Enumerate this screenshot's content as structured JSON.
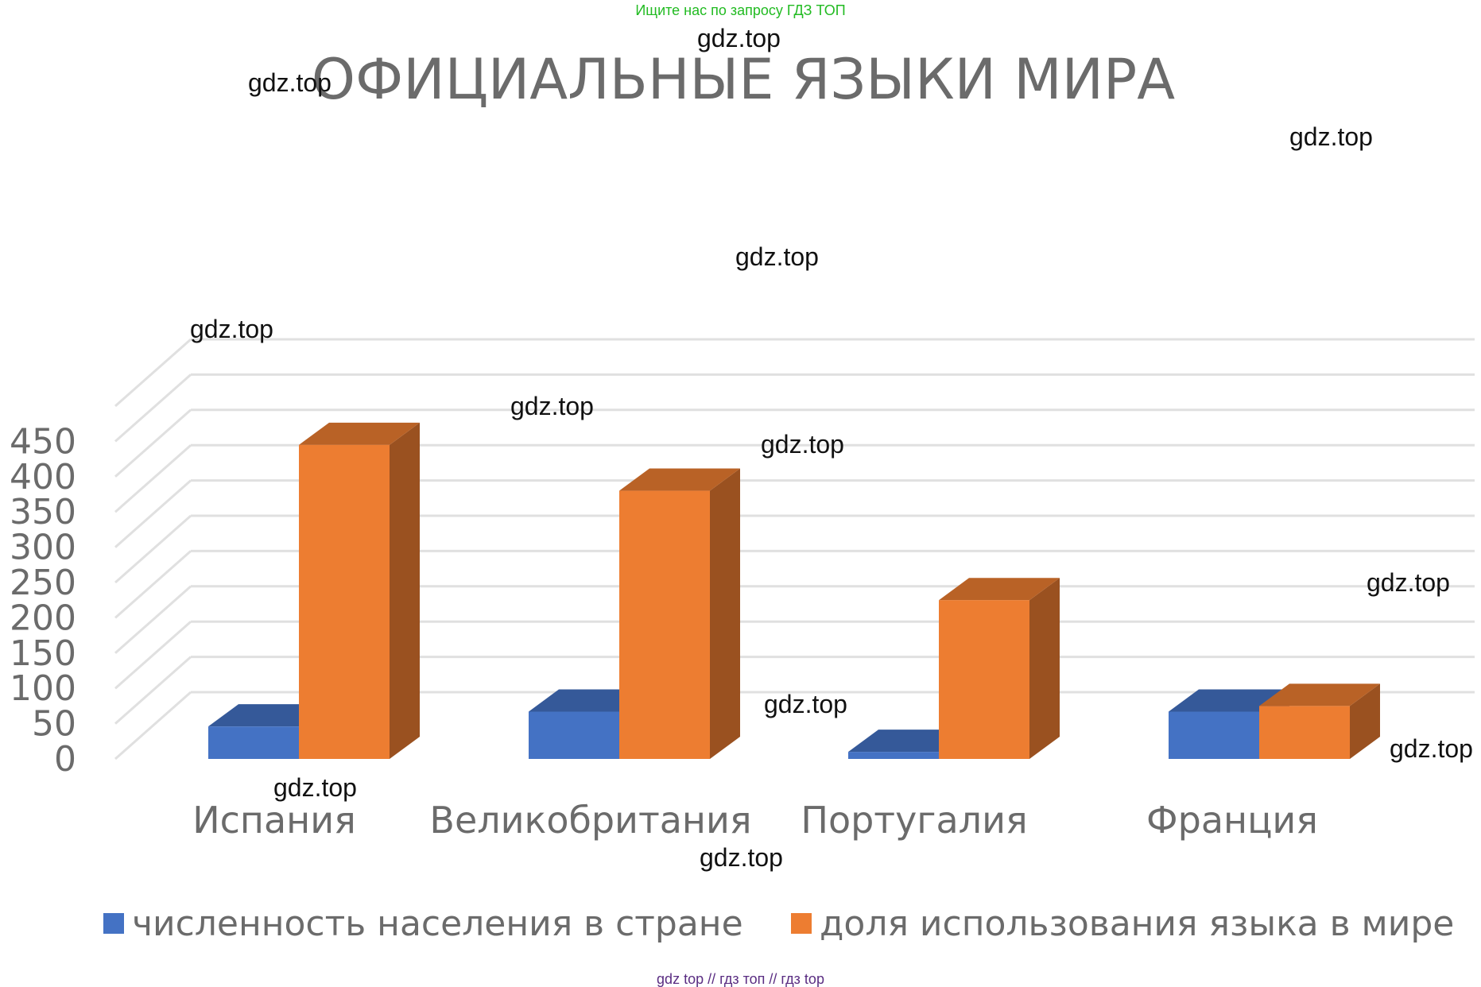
{
  "banner_top": "Ищите нас по запросу ГДЗ ТОП",
  "banner_bottom": "gdz top  //  гдз топ  //  гдз top",
  "watermarks": [
    "gdz.top",
    "gdz.top",
    "gdz.top",
    "gdz.top",
    "gdz.top",
    "gdz.top",
    "gdz.top",
    "gdz.top",
    "gdz.top",
    "gdz.top",
    "gdz.top",
    "gdz.top"
  ],
  "colors": {
    "population": "#4472c4",
    "usage": "#ed7d31",
    "grid": "#e0e0e0",
    "text": "#6b6b6b"
  },
  "chart_data": {
    "type": "bar",
    "style": "3d-clustered-column",
    "title": "ОФИЦИАЛЬНЫЕ ЯЗЫКИ МИРА",
    "xlabel": "",
    "ylabel": "",
    "ylim": [
      0,
      500
    ],
    "yticks": [
      "0",
      "50",
      "100",
      "150",
      "200",
      "250",
      "300",
      "350",
      "400",
      "450"
    ],
    "grid": true,
    "legend_position": "bottom",
    "categories": [
      "Испания",
      "Великобритания",
      "Португалия",
      "Франция"
    ],
    "series": [
      {
        "name": "численность населения в стране",
        "values": [
          46,
          67,
          10,
          67
        ]
      },
      {
        "name": "доля использования языка в мире",
        "values": [
          445,
          380,
          225,
          75
        ]
      }
    ]
  }
}
